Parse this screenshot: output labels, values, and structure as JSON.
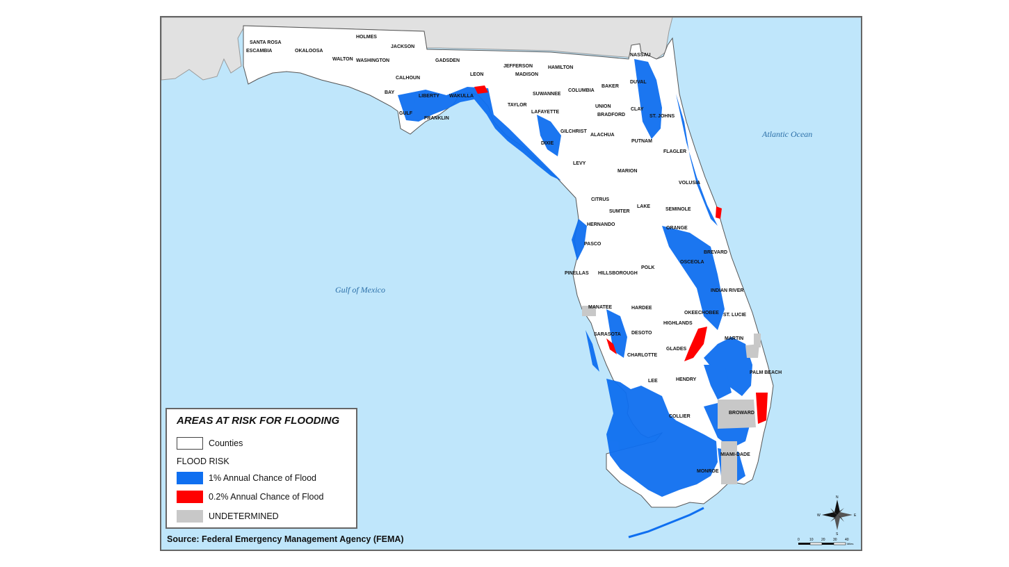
{
  "legend": {
    "title": "AREAS AT RISK FOR FLOODING",
    "counties_label": "Counties",
    "flood_risk_heading": "FLOOD RISK",
    "items": [
      {
        "label": "1% Annual Chance of Flood",
        "color": "#0f6ff0"
      },
      {
        "label": "0.2% Annual Chance of Flood",
        "color": "#ff0000"
      },
      {
        "label": "UNDETERMINED",
        "color": "#c8c8c8"
      }
    ]
  },
  "source": "Source: Federal Emergency Management Agency (FEMA)",
  "water_labels": {
    "gulf": "Gulf of Mexico",
    "atlantic": "Atlantic Ocean"
  },
  "counties": [
    "SANTA ROSA",
    "ESCAMBIA",
    "OKALOOSA",
    "HOLMES",
    "JACKSON",
    "WALTON",
    "WASHINGTON",
    "CALHOUN",
    "GADSDEN",
    "LEON",
    "JEFFERSON",
    "MADISON",
    "HAMILTON",
    "NASSAU",
    "BAY",
    "LIBERTY",
    "WAKULLA",
    "TAYLOR",
    "SUWANNEE",
    "COLUMBIA",
    "BAKER",
    "DUVAL",
    "GULF",
    "FRANKLIN",
    "LAFAYETTE",
    "UNION",
    "BRADFORD",
    "CLAY",
    "ST. JOHNS",
    "GILCHRIST",
    "ALACHUA",
    "DIXIE",
    "PUTNAM",
    "FLAGLER",
    "LEVY",
    "MARION",
    "VOLUSIA",
    "CITRUS",
    "SUMTER",
    "LAKE",
    "SEMINOLE",
    "HERNANDO",
    "ORANGE",
    "PASCO",
    "BREVARD",
    "OSCEOLA",
    "PINELLAS",
    "HILLSBOROUGH",
    "POLK",
    "INDIAN RIVER",
    "MANATEE",
    "HARDEE",
    "OKEECHOBEE",
    "ST. LUCIE",
    "HIGHLANDS",
    "SARASOTA",
    "DESOTO",
    "MARTIN",
    "GLADES",
    "CHARLOTTE",
    "LEE",
    "HENDRY",
    "PALM BEACH",
    "COLLIER",
    "BROWARD",
    "MIAMI-DADE",
    "MONROE"
  ],
  "scale": {
    "ticks": [
      "0",
      "10",
      "20",
      "30",
      "40"
    ],
    "unit": "Miles"
  },
  "north_arrow": {
    "n": "N",
    "s": "S",
    "e": "E",
    "w": "W"
  },
  "colors": {
    "water": "#bfe6fb",
    "land": "#ffffff",
    "neighbor": "#e1e1e1",
    "flood": "#0f6ff0",
    "flood02": "#ff0000",
    "undetermined": "#c8c8c8"
  }
}
